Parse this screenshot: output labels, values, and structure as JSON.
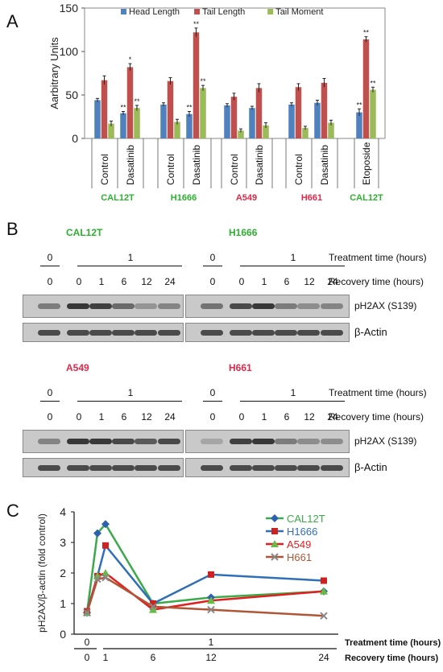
{
  "panels": {
    "a": "A",
    "b": "B",
    "c": "C"
  },
  "colors": {
    "blue": "#4f81bd",
    "red": "#c0504d",
    "green": "#9bbb59",
    "greenLabel": "#2db030",
    "redLabel": "#e0284a"
  },
  "chart_data": [
    {
      "type": "bar",
      "ylabel": "Aarbitrary Units",
      "ylim": [
        0,
        150
      ],
      "yticks": [
        0,
        50,
        100,
        150
      ],
      "categories": [
        "Control",
        "Dasatinib",
        "Control",
        "Dasatinib",
        "Control",
        "Dasatinib",
        "Control",
        "Dasatinib",
        "Etoposide"
      ],
      "groups": [
        {
          "label": "CAL12T",
          "color": "#2db030"
        },
        {
          "label": "H1666",
          "color": "#2db030"
        },
        {
          "label": "A549",
          "color": "#e0284a"
        },
        {
          "label": "H661",
          "color": "#e0284a"
        },
        {
          "label": "CAL12T",
          "color": "#2db030"
        }
      ],
      "legend_position": "top",
      "series": [
        {
          "name": "Head Length",
          "color": "#4f81bd",
          "values": [
            44,
            29,
            39,
            28,
            38,
            35,
            39,
            41,
            30
          ],
          "errors": [
            2,
            2,
            2,
            3,
            2,
            2,
            2,
            3,
            4
          ],
          "marks": [
            "",
            "**",
            "",
            "**",
            "",
            "",
            "",
            "",
            "**"
          ]
        },
        {
          "name": "Tail Length",
          "color": "#c0504d",
          "values": [
            67,
            82,
            66,
            122,
            48,
            58,
            59,
            64,
            114
          ],
          "errors": [
            5,
            4,
            4,
            5,
            4,
            5,
            4,
            5,
            3
          ],
          "marks": [
            "",
            "*",
            "",
            "**",
            "",
            "",
            "",
            "",
            "**"
          ]
        },
        {
          "name": "Tail Moment",
          "color": "#9bbb59",
          "values": [
            17,
            35,
            19,
            58,
            9,
            15,
            12,
            18,
            56
          ],
          "errors": [
            3,
            3,
            3,
            3,
            2,
            3,
            2,
            3,
            3
          ],
          "marks": [
            "",
            "**",
            "",
            "**",
            "",
            "",
            "",
            "",
            "**"
          ]
        }
      ]
    },
    {
      "type": "line",
      "ylabel": "pH2AX/β-actin (fold control)",
      "ylim": [
        0,
        4
      ],
      "yticks": [
        0,
        1,
        2,
        3,
        4
      ],
      "x": [
        0,
        0.5,
        1,
        6,
        12,
        24
      ],
      "legend_position": "top-right",
      "series": [
        {
          "name": "CAL12T",
          "color": "#3aaa4a",
          "marker": "diamond",
          "marker_color": "#2f5fb0",
          "values": [
            0.7,
            3.3,
            3.6,
            1.0,
            1.2,
            1.4
          ]
        },
        {
          "name": "H1666",
          "color": "#2f6fb8",
          "marker": "square",
          "marker_color": "#cc2222",
          "values": [
            0.75,
            1.9,
            2.9,
            1.0,
            1.95,
            1.75
          ]
        },
        {
          "name": "A549",
          "color": "#e02020",
          "marker": "triangle",
          "marker_color": "#66bb44",
          "values": [
            0.7,
            1.9,
            2.0,
            0.8,
            1.1,
            1.4
          ]
        },
        {
          "name": "H661",
          "color": "#b05535",
          "marker": "x",
          "marker_color": "#888888",
          "values": [
            0.7,
            1.8,
            1.85,
            0.9,
            0.8,
            0.6
          ]
        }
      ],
      "axis_rows": {
        "treatment": {
          "labels": [
            "0",
            "1"
          ],
          "title": "Treatment time (hours)"
        },
        "recovery": {
          "labels": [
            "0",
            "1",
            "6",
            "12",
            "24"
          ],
          "title": "Recovery time (hours)"
        }
      }
    }
  ],
  "blots": {
    "treatment_title": "Treatment time (hours)",
    "recovery_title": "Recovery time (hours)",
    "treatment_values": [
      "0",
      "1"
    ],
    "recovery_values": [
      "0",
      "0",
      "1",
      "6",
      "12",
      "24"
    ],
    "pH2AX_label": "pH2AX (S139)",
    "actin_label": "β-Actin",
    "cells": [
      {
        "name": "CAL12T",
        "color": "#2db030"
      },
      {
        "name": "H1666",
        "color": "#2db030"
      },
      {
        "name": "A549",
        "color": "#e0284a"
      },
      {
        "name": "H661",
        "color": "#e0284a"
      }
    ],
    "pH2AX_intensity": [
      [
        0.45,
        0.85,
        0.8,
        0.55,
        0.3,
        0.4
      ],
      [
        0.5,
        0.75,
        0.85,
        0.45,
        0.35,
        0.4
      ],
      [
        0.4,
        0.85,
        0.85,
        0.75,
        0.65,
        0.75
      ],
      [
        0.2,
        0.8,
        0.85,
        0.45,
        0.35,
        0.35
      ]
    ]
  }
}
